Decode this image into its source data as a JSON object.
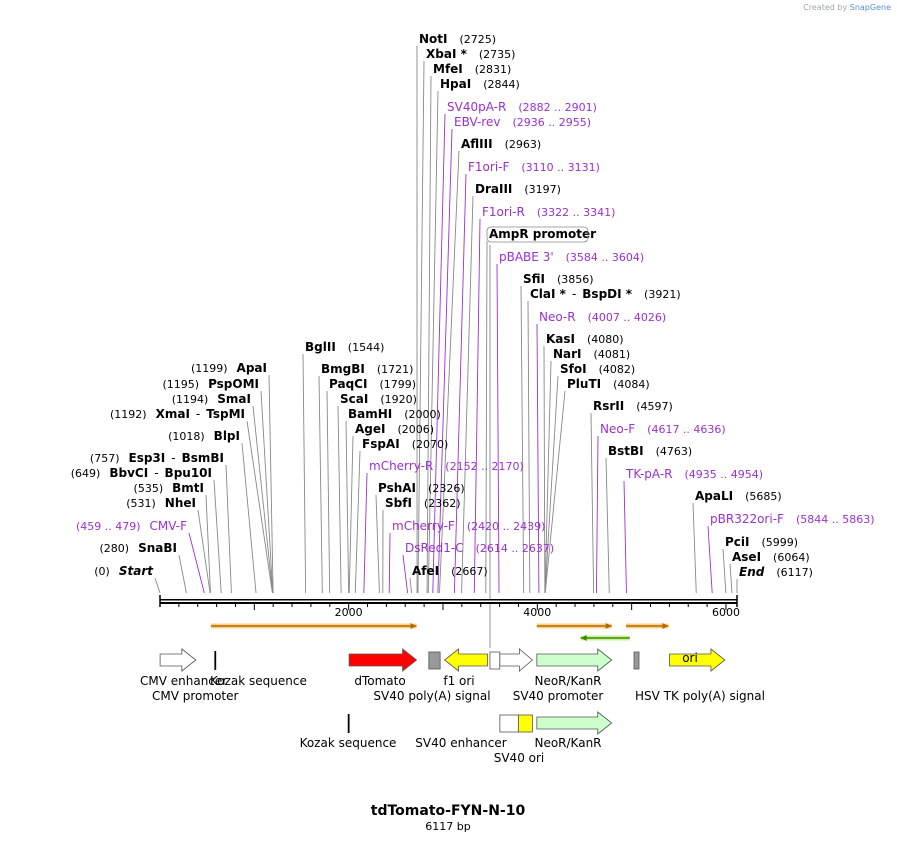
{
  "watermark": "Created by",
  "brand": "SnapGene",
  "title": "tdTomato-FYN-N-10",
  "length_label": "6117 bp",
  "total_bp": 6117,
  "axis_ticks": [
    "2000",
    "4000",
    "6000"
  ],
  "axis_tick_values": [
    2000,
    4000,
    6000
  ],
  "colors": {
    "enzyme": "#000000",
    "primer": "#9b30d0",
    "leader": "#888888"
  },
  "enzymes_left": [
    {
      "name": "ApaI",
      "pos": "(1199)",
      "bp": 1199
    },
    {
      "name": "PspOMI",
      "pos": "(1195)",
      "bp": 1195
    },
    {
      "name": "SmaI",
      "pos": "(1194)",
      "bp": 1194
    },
    {
      "name": "XmaI",
      "name2": "TspMI",
      "pos": "(1192)",
      "bp": 1192
    },
    {
      "name": "BlpI",
      "pos": "(1018)",
      "bp": 1018
    },
    {
      "name": "Esp3I",
      "name2": "BsmBI",
      "pos": "(757)",
      "bp": 757
    },
    {
      "name": "BbvCI",
      "name2": "Bpu10I",
      "pos": "(649)",
      "bp": 649
    },
    {
      "name": "BmtI",
      "pos": "(535)",
      "bp": 535
    },
    {
      "name": "NheI",
      "pos": "(531)",
      "bp": 531
    },
    {
      "name": "CMV-F",
      "pos": "(459 .. 479)",
      "bp": 470,
      "primer": true
    },
    {
      "name": "SnaBI",
      "pos": "(280)",
      "bp": 280
    },
    {
      "name": "Start",
      "pos": "(0)",
      "bp": 0,
      "italic": true
    }
  ],
  "enzymes_right": [
    {
      "name": "NotI",
      "pos": "(2725)",
      "bp": 2725
    },
    {
      "name": "XbaI *",
      "pos": "(2735)",
      "bp": 2735
    },
    {
      "name": "MfeI",
      "pos": "(2831)",
      "bp": 2831
    },
    {
      "name": "HpaI",
      "pos": "(2844)",
      "bp": 2844
    },
    {
      "name": "SV40pA-R",
      "pos": "(2882 .. 2901)",
      "bp": 2892,
      "primer": true
    },
    {
      "name": "EBV-rev",
      "pos": "(2936 .. 2955)",
      "bp": 2946,
      "primer": true
    },
    {
      "name": "AflIII",
      "pos": "(2963)",
      "bp": 2963
    },
    {
      "name": "F1ori-F",
      "pos": "(3110 .. 3131)",
      "bp": 3121,
      "primer": true
    },
    {
      "name": "DraIII",
      "pos": "(3197)",
      "bp": 3197
    },
    {
      "name": "F1ori-R",
      "pos": "(3322 .. 3341)",
      "bp": 3332,
      "primer": true
    },
    {
      "name": "AmpR promoter",
      "pos": "",
      "bp": 3454,
      "boxed": true
    },
    {
      "name": "pBABE 3'",
      "pos": "(3584 .. 3604)",
      "bp": 3594,
      "primer": true
    },
    {
      "name": "SfiI",
      "pos": "(3856)",
      "bp": 3856
    },
    {
      "name": "ClaI *",
      "name2": "BspDI *",
      "pos": "(3921)",
      "bp": 3921
    },
    {
      "name": "Neo-R",
      "pos": "(4007 .. 4026)",
      "bp": 4017,
      "primer": true
    },
    {
      "name": "KasI",
      "pos": "(4080)",
      "bp": 4080
    },
    {
      "name": "NarI",
      "pos": "(4081)",
      "bp": 4081
    },
    {
      "name": "SfoI",
      "pos": "(4082)",
      "bp": 4082
    },
    {
      "name": "PluTI",
      "pos": "(4084)",
      "bp": 4084
    },
    {
      "name": "RsrII",
      "pos": "(4597)",
      "bp": 4597
    },
    {
      "name": "Neo-F",
      "pos": "(4617 .. 4636)",
      "bp": 4627,
      "primer": true
    },
    {
      "name": "BstBI",
      "pos": "(4763)",
      "bp": 4763
    },
    {
      "name": "TK-pA-R",
      "pos": "(4935 .. 4954)",
      "bp": 4945,
      "primer": true
    },
    {
      "name": "ApaLI",
      "pos": "(5685)",
      "bp": 5685
    },
    {
      "name": "pBR322ori-F",
      "pos": "(5844 .. 5863)",
      "bp": 5854,
      "primer": true
    },
    {
      "name": "PciI",
      "pos": "(5999)",
      "bp": 5999
    },
    {
      "name": "AseI",
      "pos": "(6064)",
      "bp": 6064
    },
    {
      "name": "End",
      "pos": "(6117)",
      "bp": 6117,
      "italic": true
    }
  ],
  "enzymes_mid": [
    {
      "name": "BglII",
      "pos": "(1544)",
      "bp": 1544
    },
    {
      "name": "BmgBI",
      "pos": "(1721)",
      "bp": 1721
    },
    {
      "name": "PaqCI",
      "pos": "(1799)",
      "bp": 1799
    },
    {
      "name": "ScaI",
      "pos": "(1920)",
      "bp": 1920
    },
    {
      "name": "BamHI",
      "pos": "(2000)",
      "bp": 2000
    },
    {
      "name": "AgeI",
      "pos": "(2006)",
      "bp": 2006
    },
    {
      "name": "FspAI",
      "pos": "(2070)",
      "bp": 2070
    },
    {
      "name": "mCherry-R",
      "pos": "(2152 .. 2170)",
      "bp": 2161,
      "primer": true
    },
    {
      "name": "PshAI",
      "pos": "(2326)",
      "bp": 2326
    },
    {
      "name": "SbfI",
      "pos": "(2362)",
      "bp": 2362
    },
    {
      "name": "mCherry-F",
      "pos": "(2420 .. 2439)",
      "bp": 2430,
      "primer": true
    },
    {
      "name": "DsRed1-C",
      "pos": "(2614 .. 2637)",
      "bp": 2625,
      "primer": true
    },
    {
      "name": "AfeI",
      "pos": "(2667)",
      "bp": 2667
    }
  ],
  "features": [
    {
      "name": "CMV enhancer",
      "kind": "arrow",
      "color": "#ffffff",
      "from": 1,
      "to": 380
    },
    {
      "name": "CMV promoter",
      "kind": "label",
      "from": 381,
      "to": 584
    },
    {
      "name": "Kozak sequence",
      "kind": "tick",
      "from": 586,
      "to": 595
    },
    {
      "name": "dTomato",
      "kind": "arrow",
      "color": "#ff0000",
      "from": 2005,
      "to": 2720
    },
    {
      "name": "SV40 poly(A) signal",
      "kind": "box",
      "color": "#999999",
      "from": 2850,
      "to": 2970
    },
    {
      "name": "f1 ori",
      "kind": "arrow_rev",
      "color": "#ffff00",
      "from": 3017,
      "to": 3472
    },
    {
      "name": "AmpR promoter",
      "kind": "box",
      "color": "#ffffff",
      "from": 3498,
      "to": 3602
    },
    {
      "name": "SV40 promoter",
      "kind": "arrow",
      "color": "#ffffff",
      "from": 3603,
      "to": 3948
    },
    {
      "name": "NeoR/KanR",
      "kind": "arrow",
      "color": "#ccffcc",
      "from": 3995,
      "to": 4789
    },
    {
      "name": "HSV TK poly(A) signal",
      "kind": "box",
      "color": "#999999",
      "from": 5025,
      "to": 5072
    },
    {
      "name": "ori",
      "kind": "arrow",
      "color": "#ffff00",
      "from": 5400,
      "to": 5989
    },
    {
      "name": "Kozak sequence",
      "kind": "tick",
      "from": 2000,
      "to": 2008,
      "row": 2
    },
    {
      "name": "SV40 enhancer",
      "kind": "box",
      "color": "#ffffff",
      "from": 3603,
      "to": 3799,
      "row": 2
    },
    {
      "name": "SV40 ori",
      "kind": "box",
      "color": "#ffff00",
      "from": 3800,
      "to": 3948,
      "row": 2
    },
    {
      "name": "NeoR/KanR",
      "kind": "arrow",
      "color": "#ccffcc",
      "from": 3995,
      "to": 4789,
      "row": 2
    }
  ],
  "orfs": [
    {
      "from": 540,
      "to": 2720,
      "dir": "fwd"
    },
    {
      "from": 3995,
      "to": 4789,
      "dir": "fwd"
    },
    {
      "from": 4460,
      "to": 4980,
      "dir": "rev"
    },
    {
      "from": 4940,
      "to": 5390,
      "dir": "fwd"
    }
  ]
}
